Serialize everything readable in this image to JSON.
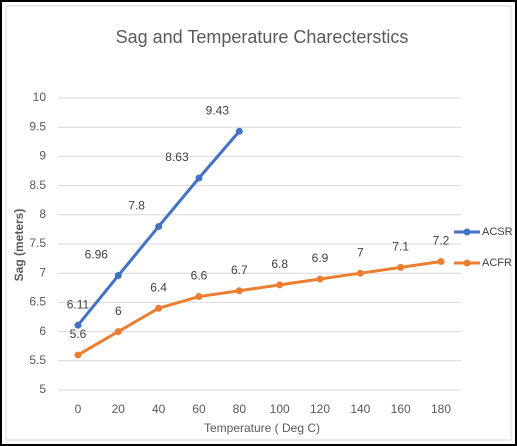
{
  "chart_data": {
    "type": "line",
    "title": "Sag and Temperature Charecterstics",
    "x_label": "Temperature ( Deg C)",
    "y_label": "Sag (meters)",
    "x": [
      0,
      20,
      40,
      60,
      80,
      100,
      120,
      140,
      160,
      180
    ],
    "xlim": [
      -10,
      190
    ],
    "xticks": [
      0,
      20,
      40,
      60,
      80,
      100,
      120,
      140,
      160,
      180
    ],
    "ylim": [
      5,
      10
    ],
    "yticks": [
      5,
      {
        "value": 5.5,
        "label": "5.5"
      },
      6,
      {
        "value": 6.5,
        "label": "6.5"
      },
      7,
      {
        "value": 7.5,
        "label": "7.5"
      },
      8,
      {
        "value": 8.5,
        "label": "8.5"
      },
      9,
      {
        "value": 9.5,
        "label": "9.5"
      },
      10
    ],
    "grid": true,
    "legend": "right",
    "series": [
      {
        "name": "ACSR",
        "color": "#4472c4",
        "values": [
          6.11,
          6.96,
          7.8,
          8.63,
          9.43,
          null,
          null,
          null,
          null,
          null
        ]
      },
      {
        "name": "ACFR",
        "color": "#ed7d31",
        "values": [
          5.6,
          6,
          6.4,
          6.6,
          6.7,
          6.8,
          6.9,
          7,
          7.1,
          7.2
        ]
      }
    ]
  }
}
